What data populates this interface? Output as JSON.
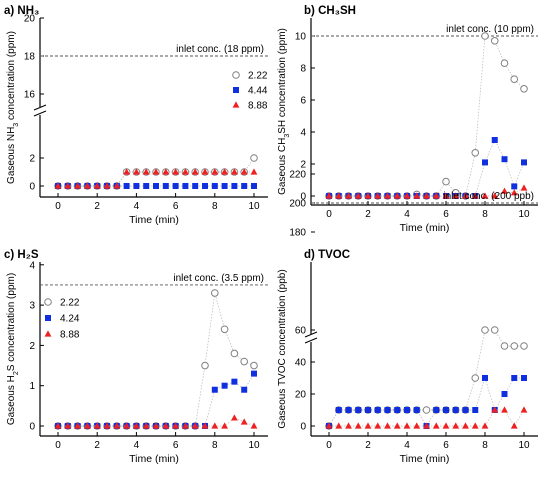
{
  "chart_data": [
    {
      "type": "scatter",
      "panel_label": "a)",
      "title": "NH₃",
      "xlabel": "Time (min)",
      "ylabel_parts": [
        "Gaseous NH",
        "3",
        " concentration (ppm)"
      ],
      "annotation": "inlet conc. (18 ppm)",
      "inlet": 18,
      "x_ticks": [
        "0",
        "2",
        "4",
        "6",
        "8",
        "10"
      ],
      "y_ticks": [
        "0",
        "2",
        "16",
        "18",
        "20"
      ],
      "axis_break": true,
      "legend_position": "right",
      "series": [
        {
          "name": "2.22",
          "marker": "circle-open",
          "color": "#808080",
          "x": [
            0,
            0.5,
            1,
            1.5,
            2,
            2.5,
            3,
            3.5,
            4,
            4.5,
            5,
            5.5,
            6,
            6.5,
            7,
            7.5,
            8,
            8.5,
            9,
            9.5,
            10
          ],
          "y": [
            0,
            0,
            0,
            0,
            0,
            0,
            0,
            1,
            1,
            1,
            1,
            1,
            1,
            1,
            1,
            1,
            1,
            1,
            1,
            1,
            2
          ]
        },
        {
          "name": "4.44",
          "marker": "square",
          "color": "#1030e0",
          "x": [
            0,
            0.5,
            1,
            1.5,
            2,
            2.5,
            3,
            3.5,
            4,
            4.5,
            5,
            5.5,
            6,
            6.5,
            7,
            7.5,
            8,
            8.5,
            9,
            9.5,
            10
          ],
          "y": [
            0,
            0,
            0,
            0,
            0,
            0,
            0,
            0,
            0,
            0,
            0,
            0,
            0,
            0,
            0,
            0,
            0,
            0,
            0,
            0,
            0
          ]
        },
        {
          "name": "8.88",
          "marker": "triangle",
          "color": "#ee2020",
          "x": [
            0,
            0.5,
            1,
            1.5,
            2,
            2.5,
            3,
            3.5,
            4,
            4.5,
            5,
            5.5,
            6,
            6.5,
            7,
            7.5,
            8,
            8.5,
            9,
            9.5,
            10
          ],
          "y": [
            0,
            0,
            0,
            0,
            0,
            0,
            0,
            1,
            1,
            1,
            1,
            1,
            1,
            1,
            1,
            1,
            1,
            1,
            1,
            1,
            1
          ]
        }
      ]
    },
    {
      "type": "scatter",
      "panel_label": "b)",
      "title": "CH₃SH",
      "xlabel": "Time (min)",
      "ylabel_parts": [
        "Gaseous CH",
        "3",
        "SH concentration (ppm)"
      ],
      "annotation": "inlet conc. (10 ppm)",
      "inlet": 10,
      "x_ticks": [
        "0",
        "2",
        "4",
        "6",
        "8",
        "10"
      ],
      "y_ticks": [
        "0",
        "2",
        "4",
        "6",
        "8",
        "10"
      ],
      "ylim": [
        0,
        10
      ],
      "series": [
        {
          "name": "2.22",
          "marker": "circle-open",
          "color": "#808080",
          "x": [
            0,
            0.5,
            1,
            1.5,
            2,
            2.5,
            3,
            3.5,
            4,
            4.5,
            5,
            5.5,
            6,
            6.5,
            7,
            7.5,
            8,
            8.5,
            9,
            9.5,
            10
          ],
          "y": [
            0,
            0,
            0,
            0,
            0,
            0,
            0,
            0,
            0,
            0.1,
            0,
            0,
            0.9,
            0.2,
            0,
            2.7,
            10,
            9.7,
            8.3,
            7.3,
            6.7
          ]
        },
        {
          "name": "4.44",
          "marker": "square",
          "color": "#1030e0",
          "x": [
            0,
            0.5,
            1,
            1.5,
            2,
            2.5,
            3,
            3.5,
            4,
            4.5,
            5,
            5.5,
            6,
            6.5,
            7,
            7.5,
            8,
            8.5,
            9,
            9.5,
            10
          ],
          "y": [
            0,
            0,
            0,
            0,
            0,
            0,
            0,
            0,
            0,
            0,
            0,
            0,
            0,
            0,
            0,
            0,
            2.1,
            3.5,
            2.3,
            0.6,
            2.1
          ]
        },
        {
          "name": "8.88",
          "marker": "triangle",
          "color": "#ee2020",
          "x": [
            0,
            0.5,
            1,
            1.5,
            2,
            2.5,
            3,
            3.5,
            4,
            4.5,
            5,
            5.5,
            6,
            6.5,
            7,
            7.5,
            8,
            8.5,
            9,
            9.5,
            10
          ],
          "y": [
            0,
            0,
            0,
            0,
            0,
            0,
            0,
            0,
            0,
            0,
            0,
            0,
            0,
            0,
            0,
            0,
            0,
            0,
            0.3,
            0.2,
            0.5
          ]
        }
      ]
    },
    {
      "type": "scatter",
      "panel_label": "c)",
      "title": "H₂S",
      "xlabel": "Time (min)",
      "ylabel_parts": [
        "Gaseous H",
        "2",
        "S concentration (ppm)"
      ],
      "annotation": "inlet conc. (3.5 ppm)",
      "inlet": 3.5,
      "x_ticks": [
        "0",
        "2",
        "4",
        "6",
        "8",
        "10"
      ],
      "y_ticks": [
        "0",
        "1",
        "2",
        "3",
        "4"
      ],
      "ylim": [
        0,
        4
      ],
      "legend_position": "top-left",
      "series": [
        {
          "name": "2.22",
          "marker": "circle-open",
          "color": "#808080",
          "x": [
            0,
            0.5,
            1,
            1.5,
            2,
            2.5,
            3,
            3.5,
            4,
            4.5,
            5,
            5.5,
            6,
            6.5,
            7,
            7.5,
            8,
            8.5,
            9,
            9.5,
            10
          ],
          "y": [
            0,
            0,
            0,
            0,
            0,
            0,
            0,
            0,
            0,
            0,
            0,
            0,
            0,
            0,
            0,
            1.5,
            3.3,
            2.4,
            1.8,
            1.6,
            1.5
          ]
        },
        {
          "name": "4.24",
          "marker": "square",
          "color": "#1030e0",
          "x": [
            0,
            0.5,
            1,
            1.5,
            2,
            2.5,
            3,
            3.5,
            4,
            4.5,
            5,
            5.5,
            6,
            6.5,
            7,
            7.5,
            8,
            8.5,
            9,
            9.5,
            10
          ],
          "y": [
            0,
            0,
            0,
            0,
            0,
            0,
            0,
            0,
            0,
            0,
            0,
            0,
            0,
            0,
            0,
            0,
            0.9,
            1.0,
            1.1,
            0.9,
            1.3
          ]
        },
        {
          "name": "8.88",
          "marker": "triangle",
          "color": "#ee2020",
          "x": [
            0,
            0.5,
            1,
            1.5,
            2,
            2.5,
            3,
            3.5,
            4,
            4.5,
            5,
            5.5,
            6,
            6.5,
            7,
            7.5,
            8,
            8.5,
            9,
            9.5,
            10
          ],
          "y": [
            0,
            0,
            0,
            0,
            0,
            0,
            0,
            0,
            0,
            0,
            0,
            0,
            0,
            0,
            0,
            0,
            0,
            0,
            0.2,
            0.1,
            0
          ]
        }
      ]
    },
    {
      "type": "scatter",
      "panel_label": "d)",
      "title": "TVOC",
      "xlabel": "Time (min)",
      "ylabel_parts": [
        "Gaseous TVOC concentration (ppb)"
      ],
      "annotation": "inlet conc. (200 ppb)",
      "inlet": 200,
      "x_ticks": [
        "0",
        "2",
        "4",
        "6",
        "8",
        "10"
      ],
      "y_ticks": [
        "0",
        "20",
        "40",
        "60",
        "180",
        "200",
        "220"
      ],
      "axis_break": true,
      "series": [
        {
          "name": "2.22",
          "marker": "circle-open",
          "color": "#808080",
          "x": [
            0,
            0.5,
            1,
            1.5,
            2,
            2.5,
            3,
            3.5,
            4,
            4.5,
            5,
            5.5,
            6,
            6.5,
            7,
            7.5,
            8,
            8.5,
            9,
            9.5,
            10
          ],
          "y": [
            0,
            10,
            10,
            10,
            10,
            10,
            10,
            10,
            10,
            10,
            10,
            10,
            10,
            10,
            10,
            30,
            60,
            60,
            50,
            50,
            50
          ]
        },
        {
          "name": "4.44",
          "marker": "square",
          "color": "#1030e0",
          "x": [
            0,
            0.5,
            1,
            1.5,
            2,
            2.5,
            3,
            3.5,
            4,
            4.5,
            5,
            5.5,
            6,
            6.5,
            7,
            7.5,
            8,
            8.5,
            9,
            9.5,
            10
          ],
          "y": [
            0,
            10,
            10,
            10,
            10,
            10,
            10,
            10,
            10,
            10,
            0,
            10,
            10,
            10,
            10,
            10,
            30,
            10,
            20,
            30,
            30
          ]
        },
        {
          "name": "8.88",
          "marker": "triangle",
          "color": "#ee2020",
          "x": [
            0,
            0.5,
            1,
            1.5,
            2,
            2.5,
            3,
            3.5,
            4,
            4.5,
            5,
            5.5,
            6,
            6.5,
            7,
            7.5,
            8,
            8.5,
            9,
            9.5,
            10
          ],
          "y": [
            0,
            0,
            0,
            0,
            0,
            0,
            0,
            0,
            0,
            0,
            0,
            0,
            0,
            0,
            0,
            0,
            0,
            10,
            10,
            0,
            10
          ]
        }
      ]
    }
  ]
}
